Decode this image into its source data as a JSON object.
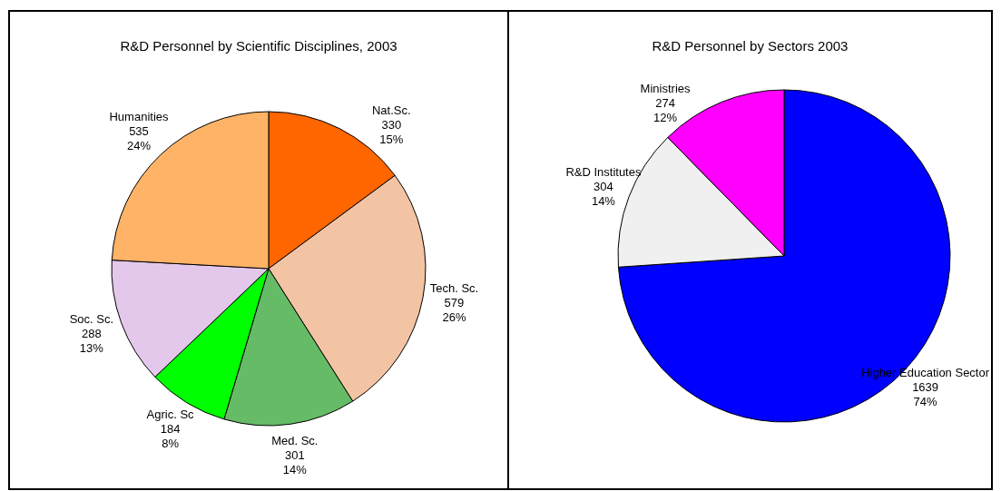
{
  "chart_data": [
    {
      "type": "pie",
      "title": "R&D Personnel by Scientific Disciplines, 2003",
      "categories": [
        "Nat.Sc.",
        "Tech. Sc.",
        "Med. Sc.",
        "Agric. Sc",
        "Soc. Sc.",
        "Humanities"
      ],
      "values": [
        330,
        579,
        301,
        184,
        288,
        535
      ],
      "value_labels": [
        "330\n15%",
        "579\n26%",
        "301\n14%",
        "184\n8%",
        "288\n13%",
        "535\n24%"
      ],
      "colors": [
        "#ff6600",
        "#f2c4a4",
        "#66bb66",
        "#00ff00",
        "#e4c8ec",
        "#ffb366"
      ]
    },
    {
      "type": "pie",
      "title": "R&D Personnel by Sectors 2003",
      "categories": [
        "Higher Education Sector",
        "R&D Institutes",
        "Ministries"
      ],
      "values": [
        1639,
        304,
        274
      ],
      "value_labels": [
        "1639\n74%",
        "304\n14%",
        "274\n12%"
      ],
      "colors": [
        "#0000ff",
        "#f0f0f0",
        "#ff00ff"
      ]
    }
  ]
}
